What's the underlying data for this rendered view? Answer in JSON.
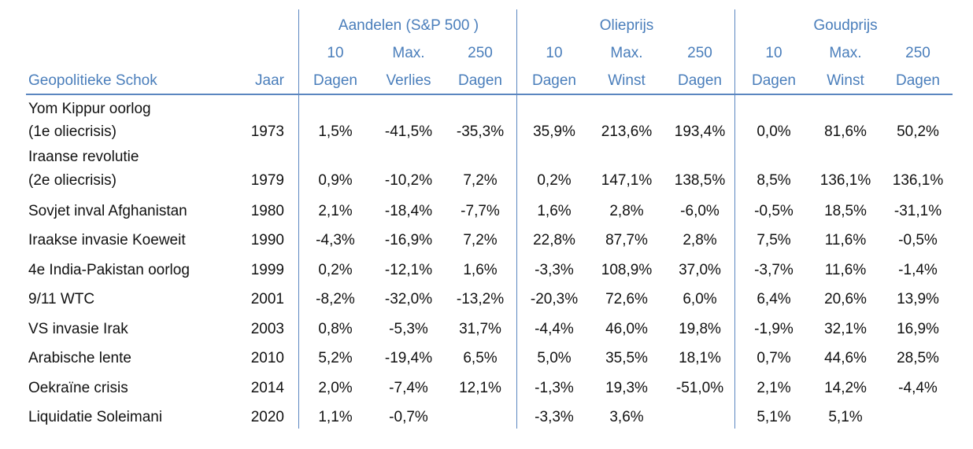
{
  "groups": [
    {
      "label": "Aandelen (S&P 500 )"
    },
    {
      "label": "Olieprijs"
    },
    {
      "label": "Goudprijs"
    }
  ],
  "subheaders": {
    "line1": [
      "10",
      "Max.",
      "250",
      "10",
      "Max.",
      "250",
      "10",
      "Max.",
      "250"
    ],
    "line2": [
      "Dagen",
      "Verlies",
      "Dagen",
      "Dagen",
      "Winst",
      "Dagen",
      "Dagen",
      "Winst",
      "Dagen"
    ]
  },
  "columns": {
    "event": "Geopolitieke Schok",
    "year": "Jaar"
  },
  "rows": [
    {
      "event": [
        "Yom Kippur oorlog",
        "(1e oliecrisis)"
      ],
      "year": "1973",
      "values": [
        "1,5%",
        "-41,5%",
        "-35,3%",
        "35,9%",
        "213,6%",
        "193,4%",
        "0,0%",
        "81,6%",
        "50,2%"
      ]
    },
    {
      "event": [
        "Iraanse revolutie",
        "(2e oliecrisis)"
      ],
      "year": "1979",
      "values": [
        "0,9%",
        "-10,2%",
        "7,2%",
        "0,2%",
        "147,1%",
        "138,5%",
        "8,5%",
        "136,1%",
        "136,1%"
      ]
    },
    {
      "event": [
        "Sovjet inval Afghanistan"
      ],
      "year": "1980",
      "values": [
        "2,1%",
        "-18,4%",
        "-7,7%",
        "1,6%",
        "2,8%",
        "-6,0%",
        "-0,5%",
        "18,5%",
        "-31,1%"
      ]
    },
    {
      "event": [
        "Iraakse invasie Koeweit"
      ],
      "year": "1990",
      "values": [
        "-4,3%",
        "-16,9%",
        "7,2%",
        "22,8%",
        "87,7%",
        "2,8%",
        "7,5%",
        "11,6%",
        "-0,5%"
      ]
    },
    {
      "event": [
        "4e India-Pakistan oorlog"
      ],
      "year": "1999",
      "values": [
        "0,2%",
        "-12,1%",
        "1,6%",
        "-3,3%",
        "108,9%",
        "37,0%",
        "-3,7%",
        "11,6%",
        "-1,4%"
      ]
    },
    {
      "event": [
        "9/11 WTC"
      ],
      "year": "2001",
      "values": [
        "-8,2%",
        "-32,0%",
        "-13,2%",
        "-20,3%",
        "72,6%",
        "6,0%",
        "6,4%",
        "20,6%",
        "13,9%"
      ]
    },
    {
      "event": [
        "VS invasie Irak"
      ],
      "year": "2003",
      "values": [
        "0,8%",
        "-5,3%",
        "31,7%",
        "-4,4%",
        "46,0%",
        "19,8%",
        "-1,9%",
        "32,1%",
        "16,9%"
      ]
    },
    {
      "event": [
        "Arabische lente"
      ],
      "year": "2010",
      "values": [
        "5,2%",
        "-19,4%",
        "6,5%",
        "5,0%",
        "35,5%",
        "18,1%",
        "0,7%",
        "44,6%",
        "28,5%"
      ]
    },
    {
      "event": [
        "Oekraïne crisis"
      ],
      "year": "2014",
      "values": [
        "2,0%",
        "-7,4%",
        "12,1%",
        "-1,3%",
        "19,3%",
        "-51,0%",
        "2,1%",
        "14,2%",
        "-4,4%"
      ]
    },
    {
      "event": [
        "Liquidatie Soleimani"
      ],
      "year": "2020",
      "values": [
        "1,1%",
        "-0,7%",
        "",
        "-3,3%",
        "3,6%",
        "",
        "5,1%",
        "5,1%",
        ""
      ]
    }
  ]
}
